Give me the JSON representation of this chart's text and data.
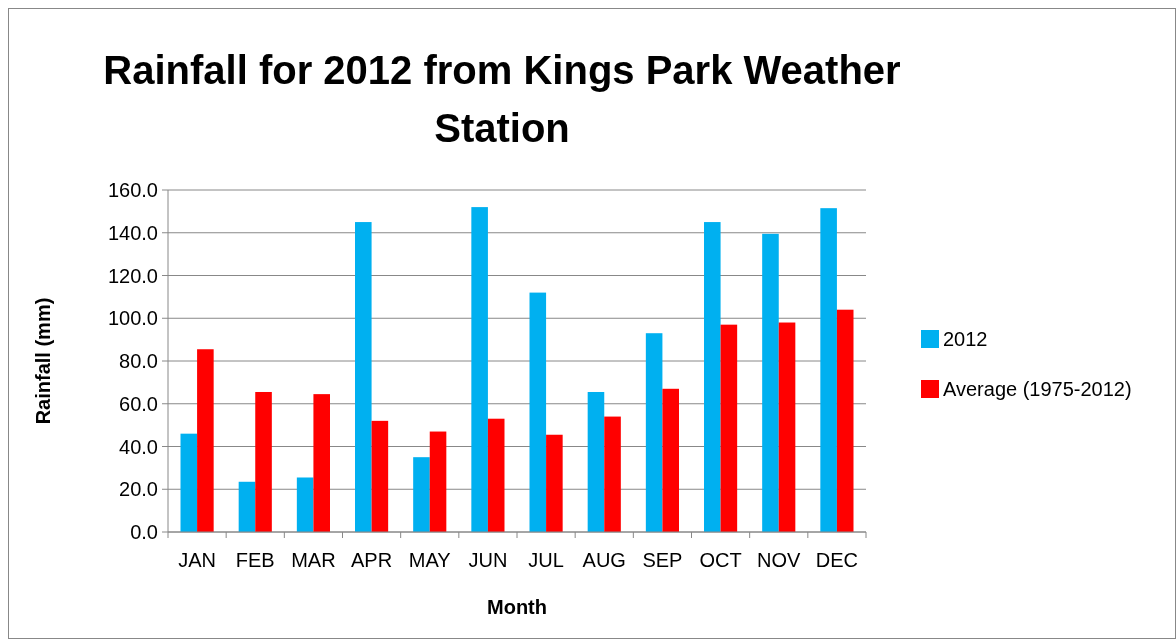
{
  "chart_data": {
    "type": "bar",
    "title": "Rainfall for 2012 from Kings Park Weather Station",
    "xlabel": "Month",
    "ylabel": "Rainfall (mm)",
    "categories": [
      "JAN",
      "FEB",
      "MAR",
      "APR",
      "MAY",
      "JUN",
      "JUL",
      "AUG",
      "SEP",
      "OCT",
      "NOV",
      "DEC"
    ],
    "series": [
      {
        "name": "2012",
        "color": "#00b0f0",
        "values": [
          46,
          23.5,
          25.5,
          145,
          35,
          152,
          112,
          65.5,
          93,
          145,
          139.5,
          151.5
        ]
      },
      {
        "name": "Average (1975-2012)",
        "color": "#ff0000",
        "values": [
          85.5,
          65.5,
          64.5,
          52,
          47,
          53,
          45.5,
          54,
          67,
          97,
          98,
          104
        ]
      }
    ],
    "ylim": [
      0,
      160
    ],
    "yticks": [
      {
        "value": 0,
        "label": "0.0"
      },
      {
        "value": 20,
        "label": "20.0"
      },
      {
        "value": 40,
        "label": "40.0"
      },
      {
        "value": 60,
        "label": "60.0"
      },
      {
        "value": 80,
        "label": "80.0"
      },
      {
        "value": 100,
        "label": "100.0"
      },
      {
        "value": 120,
        "label": "120.0"
      },
      {
        "value": 140,
        "label": "140.0"
      },
      {
        "value": 160,
        "label": "160.0"
      }
    ],
    "grid": "y",
    "legend": "right"
  }
}
